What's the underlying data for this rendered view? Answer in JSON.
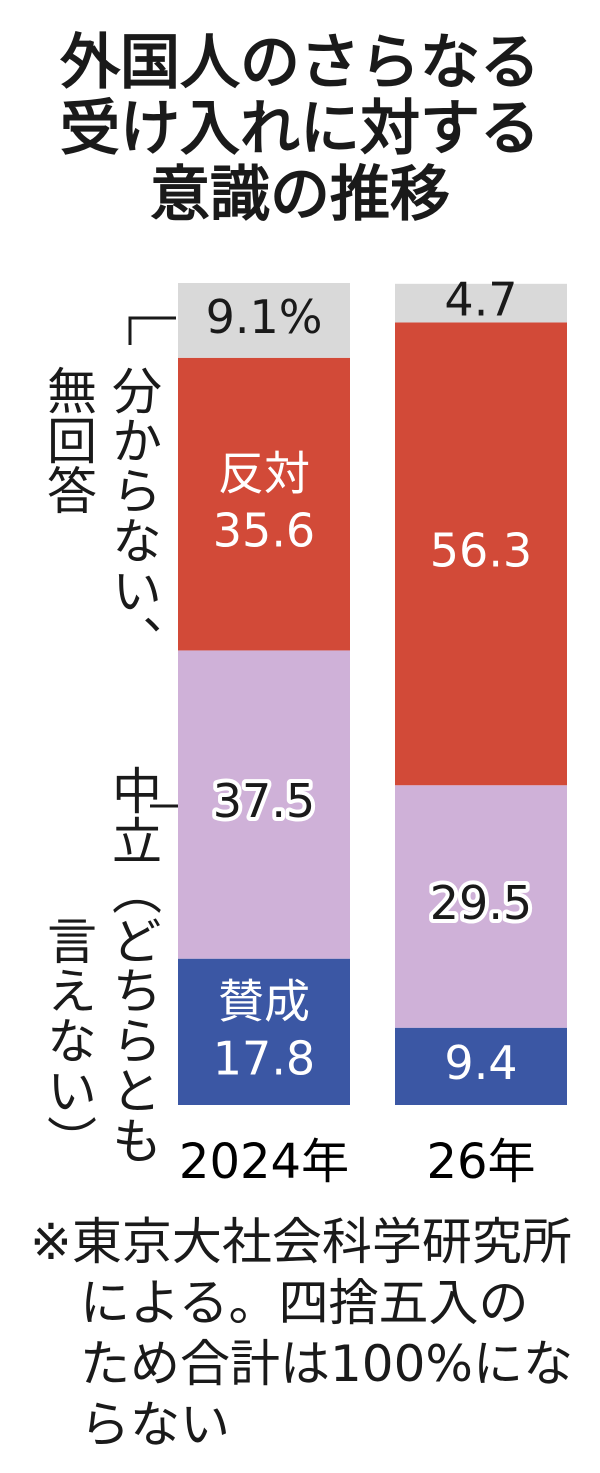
{
  "chart_data": {
    "type": "bar",
    "stacked": true,
    "title": "外国人のさらなる受け入れに対する意識の推移",
    "categories": [
      "2024年",
      "26年"
    ],
    "series": [
      {
        "name": "賛成",
        "color": "#3b57a4",
        "values": [
          17.8,
          9.4
        ]
      },
      {
        "name": "中立（どちらとも言えない）",
        "color": "#cfb1d8",
        "values": [
          37.5,
          29.5
        ]
      },
      {
        "name": "反対",
        "color": "#d24a38",
        "values": [
          35.6,
          56.3
        ]
      },
      {
        "name": "分からない、無回答",
        "color": "#d9d9d9",
        "values": [
          9.1,
          4.7
        ],
        "value_labels": [
          "9.1%",
          "4.7"
        ]
      }
    ],
    "note": "※東京大社会科学研究所による。四捨五入のため合計は100%にならない"
  }
}
